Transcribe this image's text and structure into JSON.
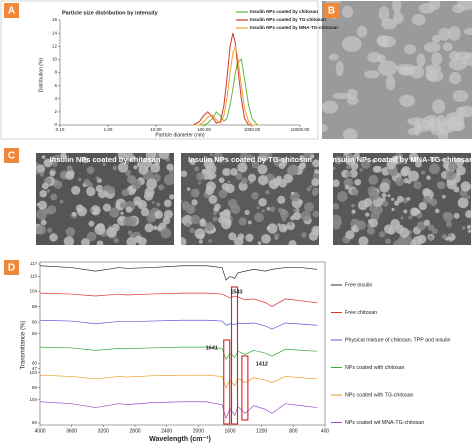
{
  "chart_data": [
    {
      "type": "line",
      "label": "A",
      "title": "Particle size distribution by intensity",
      "x_label": "Particle diameter (nm)",
      "y_label": "Distribution (%)",
      "xscale": "log",
      "xlim": [
        0.1,
        10000
      ],
      "xticks": [
        {
          "value": 0.1,
          "label": "0.10"
        },
        {
          "value": 1,
          "label": "1.00"
        },
        {
          "value": 10,
          "label": "10.00"
        },
        {
          "value": 100,
          "label": "100.00"
        },
        {
          "value": 1000,
          "label": "1000.00"
        },
        {
          "value": 10000,
          "label": "10000.00"
        }
      ],
      "ylim": [
        0,
        16
      ],
      "yticks": [
        0,
        2,
        4,
        6,
        8,
        10,
        12,
        14,
        16
      ],
      "x": [
        60,
        80,
        100,
        120,
        150,
        180,
        220,
        260,
        300,
        350,
        400,
        450,
        500,
        600,
        700,
        850,
        1000,
        1300
      ],
      "series": [
        {
          "name": "Insulin NPs coated by chitosan",
          "color": "#5fb83a",
          "values": [
            0,
            0,
            0,
            0.3,
            1,
            2,
            1.4,
            0.6,
            1,
            3,
            5.5,
            8,
            9.5,
            10,
            7,
            3,
            1,
            0
          ]
        },
        {
          "name": "Insulin NPs coated by TG-chitosan",
          "color": "#d9342b",
          "values": [
            0,
            0.5,
            1.5,
            2,
            1.2,
            0.3,
            0.5,
            3,
            7,
            12,
            14,
            12.5,
            9,
            4,
            1,
            0,
            0,
            0
          ]
        },
        {
          "name": "Insulin NPs coated by MNA-TG-chitosan",
          "color": "#f0a032",
          "values": [
            0,
            0,
            0.5,
            1.2,
            1.5,
            0.8,
            0.3,
            1.5,
            4,
            8,
            11,
            12,
            10.5,
            6,
            2.5,
            0.5,
            0,
            0
          ]
        }
      ]
    },
    {
      "type": "stacked-line",
      "label": "D",
      "x_label": "Wavelength (cm⁻¹)",
      "y_label": "Transmittance (%)",
      "xlim": [
        4000,
        400
      ],
      "xticks": [
        4000,
        3600,
        3200,
        2800,
        2400,
        2000,
        1600,
        1200,
        800,
        400
      ],
      "x": [
        4000,
        3600,
        3300,
        3000,
        2900,
        2600,
        2200,
        1900,
        1700,
        1650,
        1600,
        1540,
        1500,
        1410,
        1300,
        1150,
        1070,
        900,
        700,
        500
      ],
      "annotations": [
        1641,
        1543,
        1412
      ],
      "series": [
        {
          "name": "Free insulin",
          "color": "#333333",
          "ylim": [
            104,
            117
          ],
          "yticks": [
            110,
            117
          ],
          "values": [
            116,
            115,
            113,
            115,
            114.5,
            115,
            116,
            116,
            115,
            108,
            110,
            109,
            112,
            113,
            114,
            113,
            114,
            115,
            115,
            114
          ]
        },
        {
          "name": "Free chitosan",
          "color": "#e0312b",
          "ylim": [
            80,
            104
          ],
          "yticks": [
            88,
            104
          ],
          "values": [
            102,
            101,
            99,
            101,
            100,
            101,
            102,
            102,
            101,
            99,
            97,
            99,
            98,
            95,
            96,
            92,
            88,
            96,
            94,
            92
          ]
        },
        {
          "name": "Physical mixture of chitosan, TPP and insulin",
          "color": "#5a5ae0",
          "ylim": [
            40,
            100
          ],
          "yticks": [
            60,
            90
          ],
          "values": [
            95,
            93,
            86,
            92,
            91,
            93,
            95,
            95,
            93,
            82,
            86,
            84,
            88,
            86,
            88,
            80,
            72,
            88,
            85,
            82
          ]
        },
        {
          "name": "NPs coated with chitosan",
          "color": "#3aa83a",
          "ylim": [
            47,
            104
          ],
          "yticks": [
            47,
            60
          ],
          "values": [
            100,
            98,
            92,
            97,
            96,
            98,
            100,
            100,
            97,
            70,
            85,
            75,
            90,
            82,
            92,
            85,
            78,
            95,
            92,
            90
          ]
        },
        {
          "name": "NPs coated with TG-chitosan",
          "color": "#e8961e",
          "ylim": [
            67,
            104
          ],
          "yticks": [
            80,
            104
          ],
          "values": [
            100,
            98,
            94,
            98,
            97,
            99,
            100,
            100,
            98,
            80,
            92,
            83,
            95,
            88,
            96,
            92,
            88,
            98,
            96,
            94
          ]
        },
        {
          "name": "NPs coated wit MNA-TG-chitosan",
          "color": "#9b4fc7",
          "ylim": [
            80,
            104
          ],
          "yticks": [
            80,
            104
          ],
          "values": [
            102,
            100,
            96,
            100,
            99,
            101,
            102,
            102,
            99,
            85,
            95,
            88,
            97,
            90,
            98,
            94,
            90,
            100,
            98,
            96
          ]
        }
      ]
    }
  ],
  "images": {
    "B": {
      "label": "B"
    },
    "C": {
      "label": "C",
      "captions": [
        "Insulin NPs coated by chitosan",
        "Insulin NPs coated by TG-chitosan",
        "Insulin NPs coated by MNA-TG-chitosan"
      ]
    }
  }
}
